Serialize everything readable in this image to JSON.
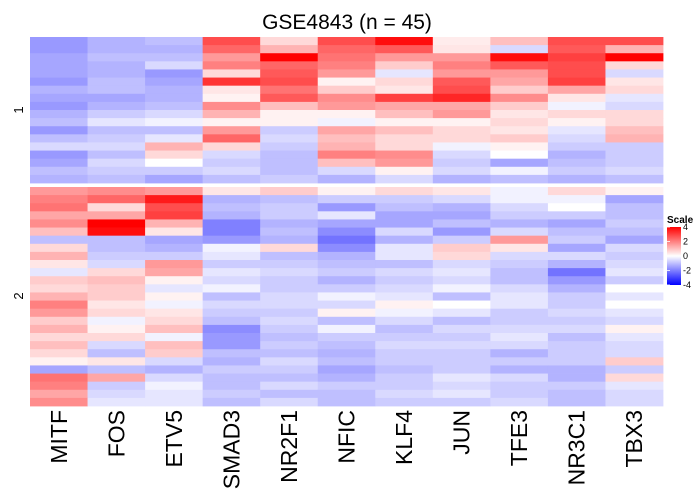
{
  "chart_data": {
    "type": "heatmap",
    "title": "GSE4843 (n = 45)",
    "columns": [
      "MITF",
      "FOS",
      "ETV5",
      "SMAD3",
      "NR2F1",
      "NFIC",
      "KLF4",
      "JUN",
      "TFE3",
      "NR3C1",
      "TBX3"
    ],
    "row_groups": [
      {
        "name": "1",
        "rows": [
          [
            -1.6,
            -1.2,
            -1.0,
            2.8,
            0.6,
            2.8,
            3.8,
            0.3,
            1.0,
            2.8,
            2.8
          ],
          [
            -1.6,
            -1.2,
            -1.2,
            2.4,
            1.2,
            2.4,
            2.6,
            0.4,
            -0.6,
            2.6,
            1.2
          ],
          [
            -1.4,
            -1.0,
            -1.0,
            1.6,
            4.0,
            2.2,
            1.6,
            1.6,
            3.8,
            3.0,
            4.0
          ],
          [
            -1.4,
            -1.2,
            -0.6,
            2.0,
            2.4,
            2.0,
            0.8,
            2.0,
            2.6,
            2.8,
            0.6
          ],
          [
            -1.4,
            -1.2,
            -1.6,
            0.6,
            2.6,
            1.6,
            -0.4,
            1.6,
            1.6,
            2.8,
            -0.6
          ],
          [
            -1.6,
            -1.0,
            -1.4,
            3.2,
            2.8,
            0.2,
            0.6,
            2.6,
            1.4,
            3.0,
            0.4
          ],
          [
            -1.2,
            -1.0,
            -1.2,
            0.4,
            2.2,
            0.8,
            0.4,
            2.8,
            0.8,
            1.4,
            0.6
          ],
          [
            -1.4,
            -1.4,
            -1.2,
            0.2,
            2.6,
            1.8,
            3.0,
            3.4,
            1.8,
            0.4,
            -0.4
          ],
          [
            -1.6,
            -1.2,
            -1.0,
            1.8,
            1.0,
            1.6,
            1.4,
            1.4,
            0.8,
            -0.2,
            -0.6
          ],
          [
            -1.2,
            -0.8,
            -0.6,
            1.2,
            0.2,
            0.2,
            1.0,
            1.6,
            0.4,
            0.6,
            0.6
          ],
          [
            -1.0,
            -0.4,
            -0.2,
            0.2,
            0.2,
            -0.2,
            0.2,
            0.2,
            0.6,
            0.2,
            0.6
          ],
          [
            -1.6,
            -1.0,
            -1.0,
            1.6,
            -0.8,
            1.4,
            1.0,
            0.6,
            0.4,
            -0.4,
            1.0
          ],
          [
            -1.0,
            -0.8,
            -0.4,
            2.4,
            -0.6,
            1.0,
            0.6,
            0.6,
            0.8,
            -0.6,
            1.2
          ],
          [
            -0.6,
            -0.6,
            1.2,
            0.6,
            -0.8,
            1.2,
            0.6,
            -0.2,
            0.2,
            -0.8,
            -0.8
          ],
          [
            -1.6,
            -1.0,
            0.6,
            -0.6,
            -1.0,
            2.0,
            1.8,
            -0.6,
            0.0,
            -1.2,
            -0.8
          ],
          [
            -1.4,
            -0.6,
            0.0,
            -0.8,
            -1.0,
            1.0,
            1.6,
            -0.8,
            -1.4,
            -1.0,
            -0.8
          ],
          [
            -1.0,
            -0.8,
            -0.8,
            -0.6,
            -1.0,
            -0.6,
            0.2,
            -0.6,
            -0.2,
            -0.8,
            -0.6
          ],
          [
            -1.2,
            -1.0,
            -1.4,
            -1.0,
            -0.8,
            -1.2,
            -0.6,
            -1.2,
            -1.0,
            -1.2,
            -1.0
          ]
        ]
      },
      {
        "name": "2",
        "rows": [
          [
            1.6,
            1.8,
            1.6,
            0.4,
            0.8,
            0.2,
            0.6,
            0.4,
            -0.2,
            0.6,
            0.2
          ],
          [
            2.0,
            2.4,
            3.6,
            -1.2,
            -1.0,
            -0.8,
            -0.8,
            -0.6,
            -0.2,
            -0.2,
            -1.4
          ],
          [
            2.2,
            0.6,
            2.8,
            -1.0,
            -0.8,
            -1.6,
            -1.0,
            -1.2,
            -0.6,
            0.0,
            -1.0
          ],
          [
            1.4,
            1.4,
            3.0,
            -1.2,
            -0.8,
            -0.4,
            -1.4,
            -1.4,
            -0.8,
            -0.8,
            -1.0
          ],
          [
            1.8,
            4.0,
            1.2,
            -2.0,
            -1.2,
            -1.4,
            -1.4,
            -1.0,
            -1.2,
            -1.4,
            -0.8
          ],
          [
            1.0,
            3.8,
            0.4,
            -2.0,
            -1.0,
            -1.8,
            -0.6,
            -1.6,
            -0.6,
            -1.0,
            -1.0
          ],
          [
            -1.0,
            -1.0,
            -1.4,
            -1.6,
            -1.2,
            -2.2,
            -1.2,
            -0.8,
            1.6,
            -0.8,
            -1.4
          ],
          [
            0.6,
            -1.0,
            -1.2,
            -0.2,
            0.6,
            -1.8,
            -0.4,
            0.8,
            0.4,
            -1.4,
            -0.6
          ],
          [
            1.2,
            -0.8,
            -0.8,
            -0.4,
            -1.0,
            -1.2,
            -0.4,
            0.6,
            -0.6,
            -0.6,
            -0.8
          ],
          [
            0.4,
            -0.6,
            1.6,
            -0.8,
            -0.8,
            -1.0,
            -1.0,
            -0.6,
            -0.8,
            -1.2,
            -0.6
          ],
          [
            -0.4,
            0.6,
            1.4,
            -0.4,
            -0.6,
            -0.8,
            -0.6,
            -0.4,
            -1.0,
            -2.2,
            -0.4
          ],
          [
            0.8,
            1.0,
            0.2,
            -0.6,
            -0.8,
            -1.2,
            -0.8,
            -0.6,
            -1.0,
            -1.6,
            -0.8
          ],
          [
            0.6,
            0.8,
            -0.4,
            -0.2,
            -0.8,
            -0.8,
            -0.6,
            -0.2,
            -0.6,
            -1.2,
            0.0
          ],
          [
            1.2,
            0.8,
            0.2,
            -1.0,
            -0.6,
            -0.2,
            -0.4,
            -1.0,
            -0.4,
            -0.8,
            -0.4
          ],
          [
            2.0,
            0.4,
            -0.2,
            -0.6,
            -0.6,
            -0.6,
            0.2,
            0.0,
            -0.4,
            -0.8,
            0.0
          ],
          [
            1.6,
            0.6,
            0.4,
            -0.8,
            -0.8,
            0.2,
            -0.2,
            -0.4,
            -0.8,
            -0.6,
            -0.4
          ],
          [
            0.8,
            -0.2,
            0.6,
            -1.0,
            -0.6,
            -1.0,
            -0.6,
            -1.0,
            -0.8,
            -0.8,
            -0.6
          ],
          [
            1.2,
            0.2,
            1.0,
            -1.8,
            -0.8,
            -0.2,
            -1.0,
            -0.6,
            -0.6,
            -0.6,
            0.2
          ],
          [
            0.6,
            0.6,
            -0.2,
            -1.6,
            -1.0,
            -0.8,
            -0.8,
            -0.8,
            -0.4,
            -1.0,
            -0.4
          ],
          [
            1.0,
            -0.6,
            1.0,
            -1.6,
            -0.8,
            -1.0,
            -0.6,
            -0.6,
            -0.6,
            -0.8,
            -0.6
          ],
          [
            0.6,
            -1.0,
            0.8,
            -1.0,
            -1.0,
            -1.2,
            -0.8,
            -0.8,
            -1.2,
            -0.8,
            -0.6
          ],
          [
            0.2,
            0.4,
            -0.6,
            -1.2,
            -0.6,
            -1.0,
            -0.8,
            -0.8,
            -0.8,
            -0.8,
            0.8
          ],
          [
            -1.4,
            -1.0,
            -1.2,
            -0.8,
            -0.8,
            -1.4,
            -1.0,
            -0.8,
            -1.2,
            -1.2,
            -0.8
          ],
          [
            2.2,
            1.4,
            -0.6,
            -1.0,
            -1.0,
            -1.2,
            -0.8,
            -0.4,
            -0.6,
            -1.2,
            0.6
          ],
          [
            2.0,
            -0.8,
            -0.2,
            -1.0,
            -0.6,
            -0.8,
            -0.8,
            -0.6,
            -0.8,
            -0.8,
            -0.4
          ],
          [
            1.4,
            -0.6,
            -0.4,
            -0.8,
            -1.0,
            -1.0,
            -0.6,
            -0.4,
            -0.8,
            -1.0,
            -0.6
          ],
          [
            1.8,
            -0.4,
            -0.4,
            -1.0,
            -0.6,
            -1.0,
            -0.8,
            -0.8,
            -0.6,
            -1.0,
            -0.6
          ]
        ]
      }
    ],
    "legend": {
      "title": "Scale",
      "ticks": [
        4,
        2,
        0,
        -2,
        -4
      ],
      "range": [
        -4,
        4
      ],
      "colors": {
        "low": "#0000ff",
        "mid": "#ffffff",
        "high": "#ff0000"
      }
    }
  }
}
